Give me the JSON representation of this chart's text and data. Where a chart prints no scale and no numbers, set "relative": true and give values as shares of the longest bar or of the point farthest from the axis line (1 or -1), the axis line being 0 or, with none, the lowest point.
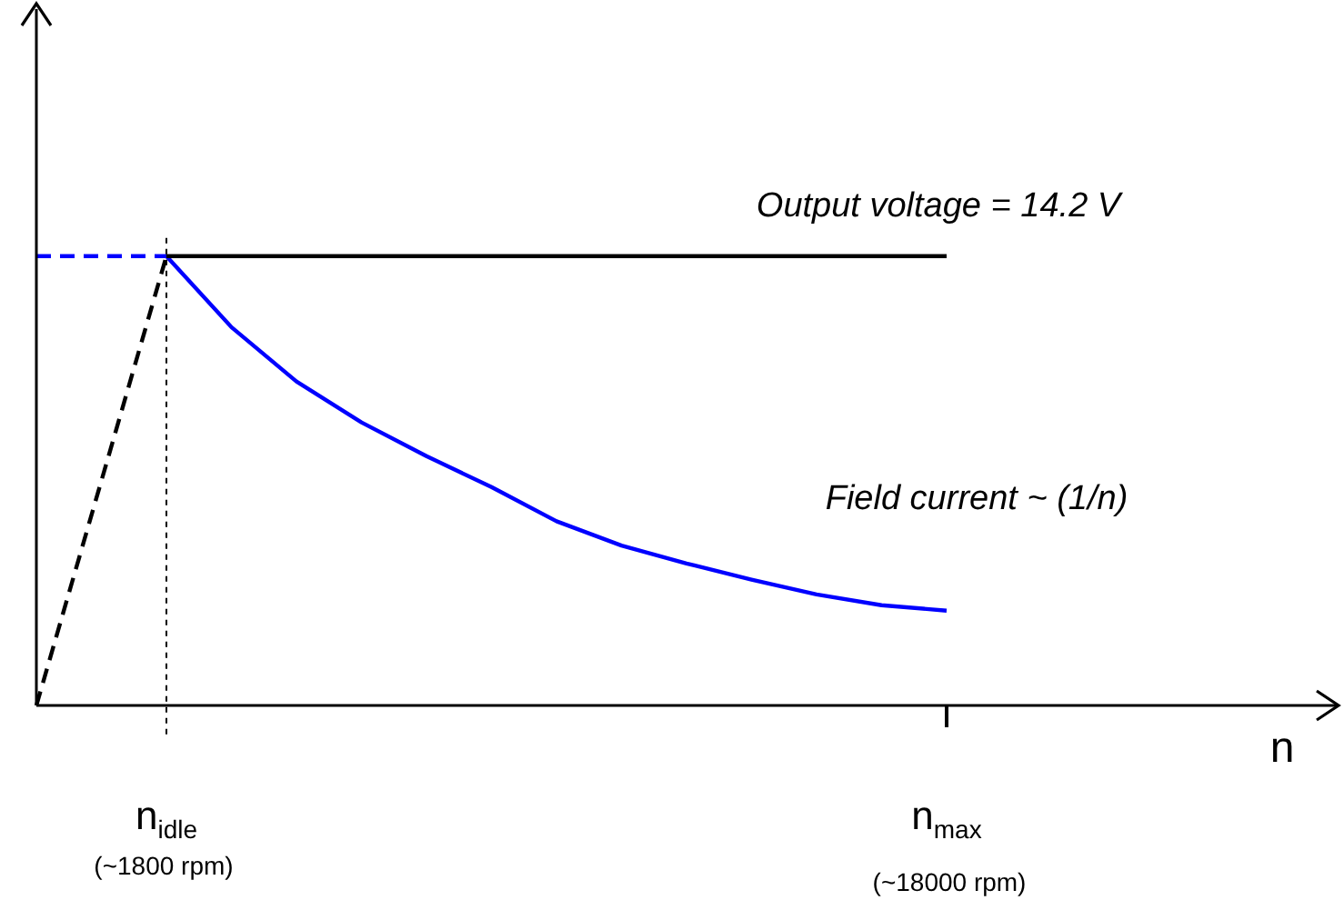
{
  "chart_data": {
    "type": "line",
    "relative": true,
    "xlabel": "n",
    "categories": [
      null,
      null,
      "n$_{idle}$",
      null,
      null,
      null,
      null,
      null,
      null,
      null,
      null,
      null,
      null,
      null,
      "n$_{max}$",
      null,
      null,
      null,
      null,
      null,
      null
    ],
    "series": [
      {
        "color": "#000000",
        "values": [
          null,
          null,
          1,
          1,
          1,
          1,
          1,
          1,
          1,
          1,
          1,
          1,
          1,
          1,
          1,
          null,
          null,
          null,
          null,
          null,
          null
        ],
        "line_style": "solid"
      },
      {
        "color": "#0000ff",
        "values": [
          1,
          1,
          1,
          null,
          null,
          null,
          null,
          null,
          null,
          null,
          null,
          null,
          null,
          null,
          null,
          null,
          null,
          null,
          null,
          null,
          null
        ],
        "line_style": "dashed"
      },
      {
        "color": "#000000",
        "values": [
          0,
          0.5,
          1,
          null,
          null,
          null,
          null,
          null,
          null,
          null,
          null,
          null,
          null,
          null,
          null,
          null,
          null,
          null,
          null,
          null,
          null
        ],
        "line_style": "dashed"
      },
      {
        "color": "#0000ff",
        "values": [
          null,
          null,
          1,
          0.842,
          0.721,
          0.63,
          0.555,
          0.486,
          0.41,
          0.356,
          0.316,
          0.28,
          0.247,
          0.223,
          0.211,
          null,
          null,
          null,
          null,
          null,
          null
        ],
        "line_style": "solid"
      }
    ],
    "ref_lines": [
      {
        "axis": "x",
        "value": "n$_{idle}$",
        "color": "#000000",
        "line_style": "dotted"
      }
    ],
    "annotations": [
      "Output voltage = 14.2 V",
      "Field current ~ (1/n)",
      "(~1800 rpm)",
      "(~18000 rpm)"
    ],
    "legend": false,
    "marker": "none"
  }
}
